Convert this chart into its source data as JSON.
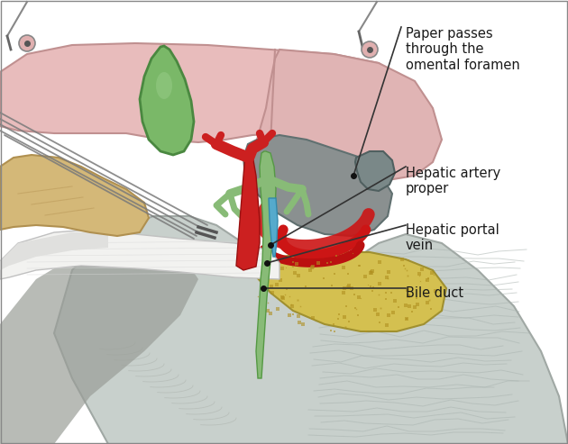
{
  "bg_color": "#ffffff",
  "labels": {
    "paper": "Paper passes\nthrough the\nomental foramen",
    "hepatic_artery": "Hepatic artery\nproper",
    "hepatic_portal": "Hepatic portal\nvein",
    "bile_duct": "Bile duct"
  },
  "colors": {
    "liver_pink": "#e8bfbf",
    "liver_edge": "#c89898",
    "gallbladder": "#7ab86a",
    "gallbladder_edge": "#4a8840",
    "omentum_gray": "#8a9090",
    "omentum_light": "#b0baba",
    "lesser_omentum": "#909898",
    "portal_vein_red": "#cc2020",
    "artery_red": "#bb1010",
    "bile_green": "#88bb77",
    "bile_blue": "#55aacc",
    "paper_white": "#efefee",
    "paper_edge": "#aaaaaa",
    "duodenum_yellow": "#d4c050",
    "duodenum_edge": "#a09030",
    "skin": "#d4b878",
    "skin_edge": "#b09050",
    "shadow": "#a0a0a0",
    "text_dark": "#1a1a1a",
    "bg_wavy": "#d8dcd8",
    "pin_dark": "#666666",
    "foramen_gray": "#7a8888"
  },
  "font_size": 10.5
}
